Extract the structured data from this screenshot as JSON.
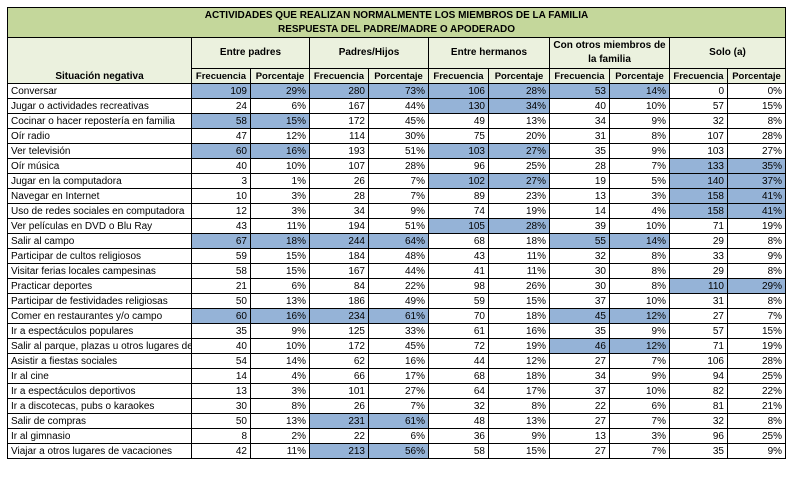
{
  "title_line1": "ACTIVIDADES QUE REALIZAN NORMALMENTE LOS MIEMBROS DE LA FAMILIA",
  "title_line2": "RESPUESTA DEL PADRE/MADRE O APODERADO",
  "row_header": "Situación negativa",
  "groups": [
    "Entre padres",
    "Padres/Hijos",
    "Entre hermanos",
    "Con otros miembros de la familia",
    "Solo (a)"
  ],
  "sub_headers": [
    "Frecuencia",
    "Porcentaje"
  ],
  "highlight_color": "#95b3d7",
  "header_color": "#c4d79b",
  "rows": [
    {
      "label": "Conversar",
      "cells": [
        [
          "109",
          "29%"
        ],
        [
          "280",
          "73%"
        ],
        [
          "106",
          "28%"
        ],
        [
          "53",
          "14%"
        ],
        [
          "0",
          "0%"
        ]
      ],
      "hl": [
        0,
        1,
        2,
        3
      ]
    },
    {
      "label": "Jugar o actividades recreativas",
      "cells": [
        [
          "24",
          "6%"
        ],
        [
          "167",
          "44%"
        ],
        [
          "130",
          "34%"
        ],
        [
          "40",
          "10%"
        ],
        [
          "57",
          "15%"
        ]
      ],
      "hl": [
        2
      ]
    },
    {
      "label": "Cocinar o hacer repostería en familia",
      "cells": [
        [
          "58",
          "15%"
        ],
        [
          "172",
          "45%"
        ],
        [
          "49",
          "13%"
        ],
        [
          "34",
          "9%"
        ],
        [
          "32",
          "8%"
        ]
      ],
      "hl": [
        0
      ]
    },
    {
      "label": "Oír radio",
      "cells": [
        [
          "47",
          "12%"
        ],
        [
          "114",
          "30%"
        ],
        [
          "75",
          "20%"
        ],
        [
          "31",
          "8%"
        ],
        [
          "107",
          "28%"
        ]
      ],
      "hl": []
    },
    {
      "label": "Ver televisión",
      "cells": [
        [
          "60",
          "16%"
        ],
        [
          "193",
          "51%"
        ],
        [
          "103",
          "27%"
        ],
        [
          "35",
          "9%"
        ],
        [
          "103",
          "27%"
        ]
      ],
      "hl": [
        0,
        2
      ]
    },
    {
      "label": "Oír música",
      "cells": [
        [
          "40",
          "10%"
        ],
        [
          "107",
          "28%"
        ],
        [
          "96",
          "25%"
        ],
        [
          "28",
          "7%"
        ],
        [
          "133",
          "35%"
        ]
      ],
      "hl": [
        4
      ]
    },
    {
      "label": "Jugar en la computadora",
      "cells": [
        [
          "3",
          "1%"
        ],
        [
          "26",
          "7%"
        ],
        [
          "102",
          "27%"
        ],
        [
          "19",
          "5%"
        ],
        [
          "140",
          "37%"
        ]
      ],
      "hl": [
        2,
        4
      ]
    },
    {
      "label": "Navegar en Internet",
      "cells": [
        [
          "10",
          "3%"
        ],
        [
          "28",
          "7%"
        ],
        [
          "89",
          "23%"
        ],
        [
          "13",
          "3%"
        ],
        [
          "158",
          "41%"
        ]
      ],
      "hl": [
        4
      ]
    },
    {
      "label": "Uso de redes sociales en computadora",
      "cells": [
        [
          "12",
          "3%"
        ],
        [
          "34",
          "9%"
        ],
        [
          "74",
          "19%"
        ],
        [
          "14",
          "4%"
        ],
        [
          "158",
          "41%"
        ]
      ],
      "hl": [
        4
      ]
    },
    {
      "label": "Ver películas en DVD o Blu Ray",
      "cells": [
        [
          "43",
          "11%"
        ],
        [
          "194",
          "51%"
        ],
        [
          "105",
          "28%"
        ],
        [
          "39",
          "10%"
        ],
        [
          "71",
          "19%"
        ]
      ],
      "hl": [
        2
      ]
    },
    {
      "label": "Salir al campo",
      "cells": [
        [
          "67",
          "18%"
        ],
        [
          "244",
          "64%"
        ],
        [
          "68",
          "18%"
        ],
        [
          "55",
          "14%"
        ],
        [
          "29",
          "8%"
        ]
      ],
      "hl": [
        0,
        1,
        3
      ]
    },
    {
      "label": "Participar de cultos religiosos",
      "cells": [
        [
          "59",
          "15%"
        ],
        [
          "184",
          "48%"
        ],
        [
          "43",
          "11%"
        ],
        [
          "32",
          "8%"
        ],
        [
          "33",
          "9%"
        ]
      ],
      "hl": []
    },
    {
      "label": "Visitar ferias locales campesinas",
      "cells": [
        [
          "58",
          "15%"
        ],
        [
          "167",
          "44%"
        ],
        [
          "41",
          "11%"
        ],
        [
          "30",
          "8%"
        ],
        [
          "29",
          "8%"
        ]
      ],
      "hl": []
    },
    {
      "label": "Practicar deportes",
      "cells": [
        [
          "21",
          "6%"
        ],
        [
          "84",
          "22%"
        ],
        [
          "98",
          "26%"
        ],
        [
          "30",
          "8%"
        ],
        [
          "110",
          "29%"
        ]
      ],
      "hl": [
        4
      ]
    },
    {
      "label": "Participar de festividades religiosas",
      "cells": [
        [
          "50",
          "13%"
        ],
        [
          "186",
          "49%"
        ],
        [
          "59",
          "15%"
        ],
        [
          "37",
          "10%"
        ],
        [
          "31",
          "8%"
        ]
      ],
      "hl": []
    },
    {
      "label": "Comer en restaurantes y/o campo",
      "cells": [
        [
          "60",
          "16%"
        ],
        [
          "234",
          "61%"
        ],
        [
          "70",
          "18%"
        ],
        [
          "45",
          "12%"
        ],
        [
          "27",
          "7%"
        ]
      ],
      "hl": [
        0,
        1,
        3
      ]
    },
    {
      "label": "Ir a espectáculos populares",
      "cells": [
        [
          "35",
          "9%"
        ],
        [
          "125",
          "33%"
        ],
        [
          "61",
          "16%"
        ],
        [
          "35",
          "9%"
        ],
        [
          "57",
          "15%"
        ]
      ],
      "hl": []
    },
    {
      "label": "Salir al parque, plazas u otros lugares de",
      "cells": [
        [
          "40",
          "10%"
        ],
        [
          "172",
          "45%"
        ],
        [
          "72",
          "19%"
        ],
        [
          "46",
          "12%"
        ],
        [
          "71",
          "19%"
        ]
      ],
      "hl": [
        3
      ]
    },
    {
      "label": "Asistir a fiestas sociales",
      "cells": [
        [
          "54",
          "14%"
        ],
        [
          "62",
          "16%"
        ],
        [
          "44",
          "12%"
        ],
        [
          "27",
          "7%"
        ],
        [
          "106",
          "28%"
        ]
      ],
      "hl": []
    },
    {
      "label": "Ir al cine",
      "cells": [
        [
          "14",
          "4%"
        ],
        [
          "66",
          "17%"
        ],
        [
          "68",
          "18%"
        ],
        [
          "34",
          "9%"
        ],
        [
          "94",
          "25%"
        ]
      ],
      "hl": []
    },
    {
      "label": "Ir a espectáculos deportivos",
      "cells": [
        [
          "13",
          "3%"
        ],
        [
          "101",
          "27%"
        ],
        [
          "64",
          "17%"
        ],
        [
          "37",
          "10%"
        ],
        [
          "82",
          "22%"
        ]
      ],
      "hl": []
    },
    {
      "label": "Ir a discotecas, pubs o karaokes",
      "cells": [
        [
          "30",
          "8%"
        ],
        [
          "26",
          "7%"
        ],
        [
          "32",
          "8%"
        ],
        [
          "22",
          "6%"
        ],
        [
          "81",
          "21%"
        ]
      ],
      "hl": []
    },
    {
      "label": "Salir de compras",
      "cells": [
        [
          "50",
          "13%"
        ],
        [
          "231",
          "61%"
        ],
        [
          "48",
          "13%"
        ],
        [
          "27",
          "7%"
        ],
        [
          "32",
          "8%"
        ]
      ],
      "hl": [
        1
      ]
    },
    {
      "label": "Ir al gimnasio",
      "cells": [
        [
          "8",
          "2%"
        ],
        [
          "22",
          "6%"
        ],
        [
          "36",
          "9%"
        ],
        [
          "13",
          "3%"
        ],
        [
          "96",
          "25%"
        ]
      ],
      "hl": []
    },
    {
      "label": "Viajar a otros lugares de vacaciones",
      "cells": [
        [
          "42",
          "11%"
        ],
        [
          "213",
          "56%"
        ],
        [
          "58",
          "15%"
        ],
        [
          "27",
          "7%"
        ],
        [
          "35",
          "9%"
        ]
      ],
      "hl": [
        1
      ]
    }
  ]
}
